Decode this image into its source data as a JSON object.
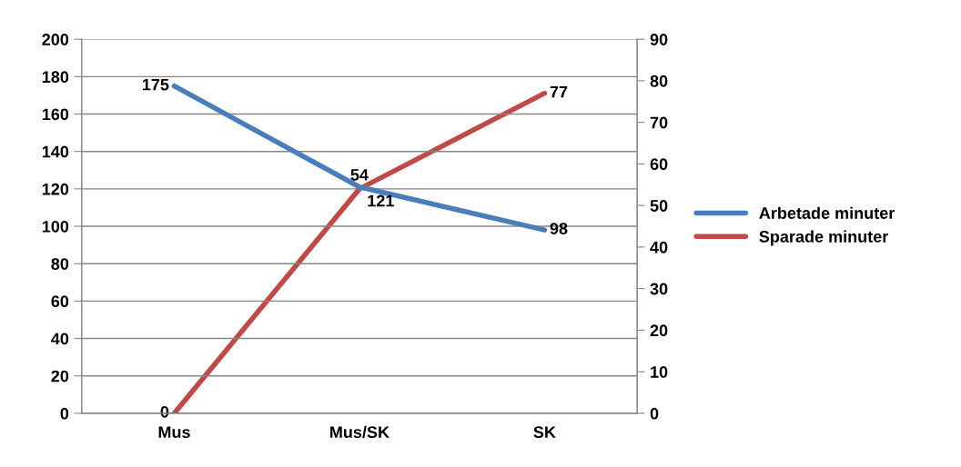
{
  "chart_data": {
    "type": "line",
    "categories": [
      "Mus",
      "Mus/SK",
      "SK"
    ],
    "series": [
      {
        "name": "Arbetade minuter",
        "color": "#4a7ebb",
        "values": [
          175,
          121,
          98
        ]
      },
      {
        "name": "Sparade minuter",
        "color": "#be4b48",
        "values": [
          0,
          54,
          77
        ],
        "axis": "y2"
      }
    ],
    "ylim": [
      0,
      200
    ],
    "yticks": [
      0,
      20,
      40,
      60,
      80,
      100,
      120,
      140,
      160,
      180,
      200
    ],
    "y2lim": [
      0,
      90
    ],
    "y2ticks": [
      0,
      10,
      20,
      30,
      40,
      50,
      60,
      70,
      80,
      90
    ],
    "grid": "y",
    "legend": "right",
    "data_labels": true,
    "marker": "none",
    "line_style": "solid"
  }
}
